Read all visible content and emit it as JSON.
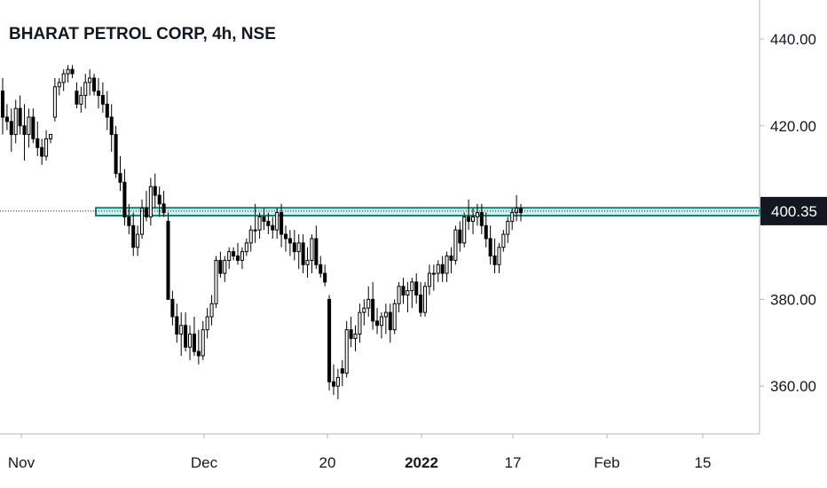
{
  "header": {
    "title": "BHARAT PETROL CORP, 4h, NSE"
  },
  "colors": {
    "candle_up_fill": "#ffffff",
    "candle_down_fill": "#000000",
    "candle_outline": "#000000",
    "zone_fill": "#b2dfdb",
    "zone_border": "#00897b",
    "grid": "#f0f3fa",
    "axis_line": "#b2b5be",
    "price_label_bg": "#131722"
  },
  "chart_data": {
    "type": "candlestick",
    "title": "BHARAT PETROL CORP, 4h, NSE",
    "ylim": [
      349,
      449
    ],
    "y_ticks": [
      "360.00",
      "380.00",
      "400.00",
      "420.00",
      "440.00"
    ],
    "y_tick_values": [
      360,
      380,
      400,
      420,
      440
    ],
    "x_ticks": [
      {
        "label": "Nov",
        "bold": false
      },
      {
        "label": "Dec",
        "bold": false
      },
      {
        "label": "20",
        "bold": false
      },
      {
        "label": "2022",
        "bold": true
      },
      {
        "label": "17",
        "bold": false
      },
      {
        "label": "Feb",
        "bold": false
      },
      {
        "label": "15",
        "bold": false
      }
    ],
    "last_price": "400.35",
    "last_price_value": 400.35,
    "support_resistance_zone": [
      399.3,
      401.1
    ],
    "grid": false,
    "candles_ohlc": [
      [
        428,
        431,
        418,
        422
      ],
      [
        422,
        425,
        419,
        421
      ],
      [
        421,
        424,
        414,
        418
      ],
      [
        418,
        426,
        416,
        424
      ],
      [
        424,
        427,
        418,
        420
      ],
      [
        420,
        425,
        412,
        418
      ],
      [
        418,
        424,
        415,
        422
      ],
      [
        422,
        424,
        416,
        417
      ],
      [
        417,
        421,
        413,
        415
      ],
      [
        415,
        417,
        411,
        413
      ],
      [
        413,
        419,
        412,
        417
      ],
      [
        417,
        418,
        416,
        418
      ],
      [
        422,
        431,
        421,
        429
      ],
      [
        429,
        431,
        427,
        430
      ],
      [
        430,
        433,
        428,
        432
      ],
      [
        432,
        434,
        430,
        433
      ],
      [
        433,
        434,
        431,
        432
      ],
      [
        428,
        430,
        424,
        425
      ],
      [
        425,
        429,
        423,
        427
      ],
      [
        427,
        432,
        424,
        430
      ],
      [
        430,
        433,
        427,
        431
      ],
      [
        431,
        432,
        427,
        428
      ],
      [
        428,
        431,
        424,
        427
      ],
      [
        427,
        430,
        423,
        425
      ],
      [
        425,
        428,
        419,
        422
      ],
      [
        422,
        425,
        414,
        418
      ],
      [
        418,
        420,
        408,
        409
      ],
      [
        409,
        413,
        405,
        407
      ],
      [
        407,
        410,
        397,
        399
      ],
      [
        399,
        402,
        395,
        397
      ],
      [
        397,
        400,
        390,
        392
      ],
      [
        392,
        397,
        390,
        395
      ],
      [
        395,
        403,
        394,
        401
      ],
      [
        401,
        405,
        398,
        399
      ],
      [
        399,
        408,
        397,
        406
      ],
      [
        406,
        409,
        401,
        404
      ],
      [
        404,
        406,
        399,
        402
      ],
      [
        402,
        405,
        399,
        400
      ],
      [
        398,
        400,
        380,
        380
      ],
      [
        380,
        382,
        374,
        376
      ],
      [
        376,
        379,
        370,
        372
      ],
      [
        372,
        377,
        367,
        374
      ],
      [
        374,
        377,
        368,
        369
      ],
      [
        369,
        374,
        366,
        372
      ],
      [
        372,
        376,
        367,
        368
      ],
      [
        368,
        373,
        365,
        367
      ],
      [
        367,
        375,
        366,
        373
      ],
      [
        373,
        378,
        371,
        376
      ],
      [
        376,
        381,
        374,
        379
      ],
      [
        379,
        390,
        378,
        389
      ],
      [
        389,
        391,
        385,
        386
      ],
      [
        386,
        390,
        384,
        389
      ],
      [
        389,
        392,
        387,
        391
      ],
      [
        391,
        392,
        389,
        390
      ],
      [
        390,
        393,
        388,
        389
      ],
      [
        389,
        392,
        387,
        391
      ],
      [
        391,
        394,
        390,
        393
      ],
      [
        393,
        397,
        391,
        396
      ],
      [
        396,
        402,
        393,
        396
      ],
      [
        396,
        400,
        394,
        399
      ],
      [
        399,
        401,
        396,
        398
      ],
      [
        398,
        400,
        395,
        397
      ],
      [
        397,
        399,
        394,
        396
      ],
      [
        396,
        401,
        394,
        400
      ],
      [
        400,
        402,
        392,
        395
      ],
      [
        395,
        397,
        391,
        394
      ],
      [
        394,
        396,
        390,
        393
      ],
      [
        393,
        396,
        389,
        391
      ],
      [
        391,
        395,
        387,
        393
      ],
      [
        393,
        395,
        386,
        388
      ],
      [
        388,
        392,
        385,
        389
      ],
      [
        389,
        395,
        386,
        394
      ],
      [
        394,
        397,
        387,
        388
      ],
      [
        388,
        390,
        385,
        386
      ],
      [
        386,
        388,
        383,
        384
      ],
      [
        380,
        381,
        359,
        361
      ],
      [
        361,
        365,
        358,
        360
      ],
      [
        360,
        364,
        357,
        362
      ],
      [
        364,
        366,
        360,
        363
      ],
      [
        363,
        375,
        362,
        373
      ],
      [
        373,
        376,
        369,
        371
      ],
      [
        371,
        374,
        368,
        372
      ],
      [
        372,
        379,
        370,
        377
      ],
      [
        377,
        380,
        374,
        378
      ],
      [
        378,
        383,
        376,
        380
      ],
      [
        380,
        384,
        373,
        375
      ],
      [
        375,
        378,
        372,
        374
      ],
      [
        374,
        377,
        371,
        376
      ],
      [
        376,
        379,
        372,
        377
      ],
      [
        377,
        379,
        370,
        373
      ],
      [
        373,
        380,
        372,
        379
      ],
      [
        379,
        384,
        377,
        383
      ],
      [
        383,
        385,
        379,
        381
      ],
      [
        381,
        384,
        377,
        382
      ],
      [
        382,
        385,
        378,
        384
      ],
      [
        384,
        386,
        379,
        381
      ],
      [
        381,
        384,
        376,
        377
      ],
      [
        377,
        384,
        376,
        383
      ],
      [
        383,
        388,
        381,
        386
      ],
      [
        386,
        388,
        382,
        386
      ],
      [
        386,
        389,
        384,
        388
      ],
      [
        388,
        390,
        384,
        386
      ],
      [
        386,
        391,
        384,
        390
      ],
      [
        390,
        392,
        386,
        389
      ],
      [
        389,
        397,
        388,
        396
      ],
      [
        396,
        398,
        391,
        393
      ],
      [
        393,
        400,
        392,
        399
      ],
      [
        399,
        403,
        396,
        398
      ],
      [
        398,
        401,
        395,
        399
      ],
      [
        399,
        402,
        397,
        400
      ],
      [
        400,
        402,
        395,
        397
      ],
      [
        397,
        400,
        392,
        394
      ],
      [
        394,
        397,
        388,
        390
      ],
      [
        390,
        394,
        386,
        388
      ],
      [
        388,
        393,
        386,
        392
      ],
      [
        392,
        396,
        391,
        395
      ],
      [
        395,
        399,
        393,
        398
      ],
      [
        398,
        401,
        396,
        400
      ],
      [
        400,
        404,
        398,
        401
      ],
      [
        401,
        402,
        398,
        400
      ]
    ]
  }
}
